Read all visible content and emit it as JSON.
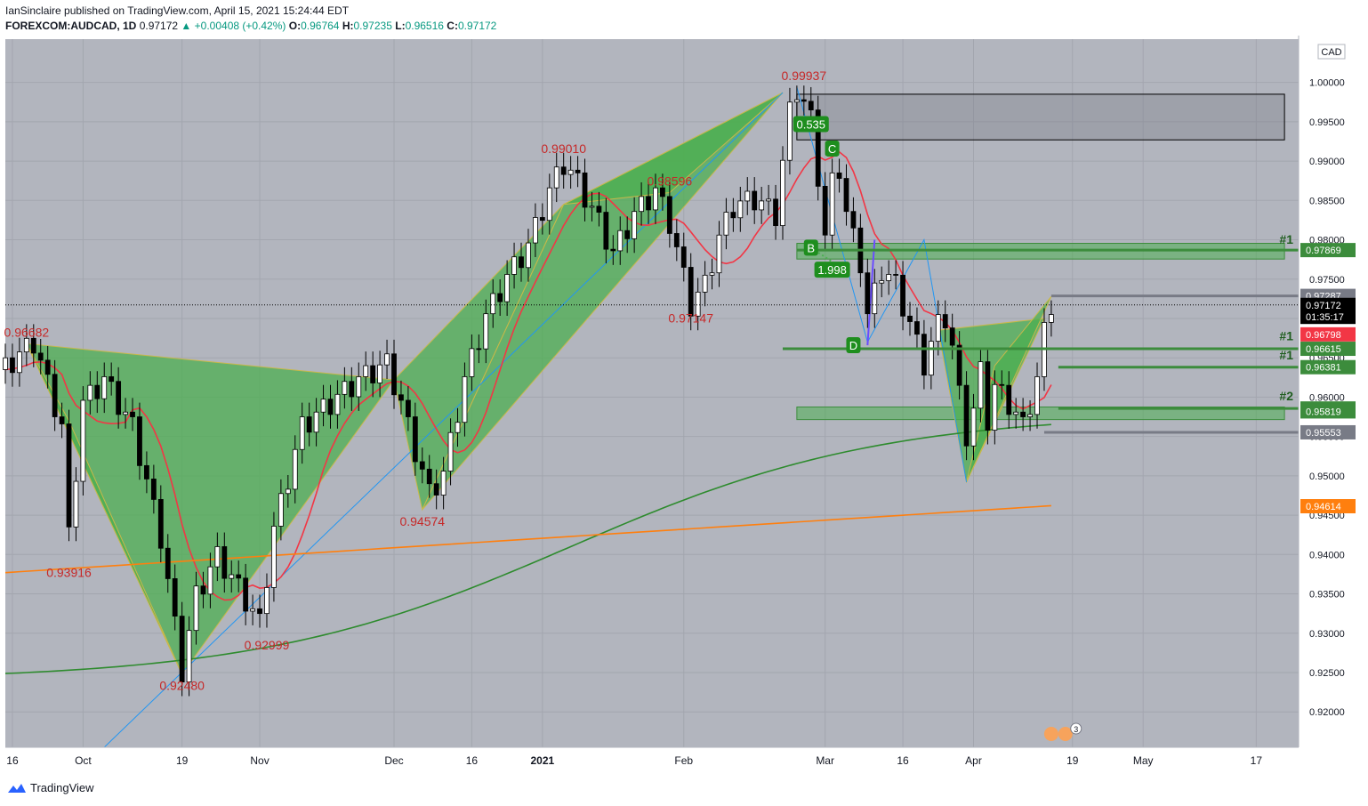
{
  "header": {
    "publisher_line": "IanSinclaire published on TradingView.com, April 15, 2021 15:24:44 EDT",
    "symbol": "FOREXCOM:AUDCAD, 1D",
    "last": "0.97172",
    "change": "+0.00408 (+0.42%)",
    "o_label": "O:",
    "o_value": "0.96764",
    "h_label": "H:",
    "h_value": "0.97235",
    "l_label": "L:",
    "l_value": "0.96516",
    "c_label": "C:",
    "c_value": "0.97172"
  },
  "footer": {
    "brand": "TradingView"
  },
  "colors": {
    "background": "#b2b5be",
    "bull_candle": "#ffffff",
    "bear_candle": "#000000",
    "pattern_fill": "#4caf50",
    "pattern_border": "#c9b84a",
    "ma_red": "#f23645",
    "ma_green": "#2e8b2e",
    "ma_orange": "#ff7f0e",
    "trendline": "#2196f3",
    "level_green": "#3c8c3c",
    "level_grey": "#787b86",
    "price_label_bg": "#000000"
  },
  "chart_data": {
    "type": "candlestick",
    "currency": "CAD",
    "ylim": [
      0.9155,
      1.0055
    ],
    "y_ticks": [
      "1.00000",
      "0.99500",
      "0.99000",
      "0.98500",
      "0.98000",
      "0.97500",
      "0.97000",
      "0.96500",
      "0.96000",
      "0.95500",
      "0.95000",
      "0.94500",
      "0.94000",
      "0.93500",
      "0.93000",
      "0.92500",
      "0.92000"
    ],
    "x_ticks": [
      {
        "label": "16",
        "x": 1
      },
      {
        "label": "Oct",
        "x": 11
      },
      {
        "label": "19",
        "x": 25
      },
      {
        "label": "Nov",
        "x": 36
      },
      {
        "label": "Dec",
        "x": 55
      },
      {
        "label": "16",
        "x": 66
      },
      {
        "label": "2021",
        "x": 76
      },
      {
        "label": "Feb",
        "x": 96
      },
      {
        "label": "Mar",
        "x": 116
      },
      {
        "label": "16",
        "x": 127
      },
      {
        "label": "Apr",
        "x": 137
      },
      {
        "label": "19",
        "x": 151
      },
      {
        "label": "May",
        "x": 161
      },
      {
        "label": "17",
        "x": 177
      }
    ],
    "x_range": [
      0,
      183
    ],
    "close_path": [
      [
        0,
        0.9635
      ],
      [
        4,
        0.9668
      ],
      [
        8,
        0.956
      ],
      [
        9,
        0.942
      ],
      [
        11,
        0.959
      ],
      [
        14,
        0.962
      ],
      [
        18,
        0.956
      ],
      [
        22,
        0.942
      ],
      [
        25,
        0.925
      ],
      [
        27,
        0.9345
      ],
      [
        30,
        0.9395
      ],
      [
        33,
        0.9355
      ],
      [
        36,
        0.931
      ],
      [
        38,
        0.943
      ],
      [
        42,
        0.956
      ],
      [
        46,
        0.959
      ],
      [
        50,
        0.962
      ],
      [
        54,
        0.964
      ],
      [
        56,
        0.959
      ],
      [
        58,
        0.953
      ],
      [
        60,
        0.9475
      ],
      [
        62,
        0.95
      ],
      [
        65,
        0.962
      ],
      [
        68,
        0.97
      ],
      [
        71,
        0.975
      ],
      [
        74,
        0.979
      ],
      [
        77,
        0.986
      ],
      [
        79,
        0.9895
      ],
      [
        81,
        0.987
      ],
      [
        84,
        0.982
      ],
      [
        86,
        0.978
      ],
      [
        89,
        0.983
      ],
      [
        92,
        0.986
      ],
      [
        94,
        0.982
      ],
      [
        96,
        0.975
      ],
      [
        97,
        0.9715
      ],
      [
        99,
        0.974
      ],
      [
        101,
        0.98
      ],
      [
        103,
        0.984
      ],
      [
        106,
        0.985
      ],
      [
        109,
        0.983
      ],
      [
        111,
        0.996
      ],
      [
        112,
        0.999
      ],
      [
        114,
        0.995
      ],
      [
        115,
        0.988
      ],
      [
        116,
        0.98
      ],
      [
        117,
        0.987
      ],
      [
        118,
        0.989
      ],
      [
        119,
        0.983
      ],
      [
        121,
        0.977
      ],
      [
        122,
        0.97
      ],
      [
        124,
        0.976
      ],
      [
        126,
        0.974
      ],
      [
        128,
        0.969
      ],
      [
        130,
        0.964
      ],
      [
        132,
        0.969
      ],
      [
        133,
        0.97
      ],
      [
        134,
        0.966
      ],
      [
        135,
        0.96
      ],
      [
        136,
        0.955
      ],
      [
        137,
        0.958
      ],
      [
        138,
        0.963
      ],
      [
        139,
        0.957
      ],
      [
        140,
        0.961
      ],
      [
        142,
        0.959
      ],
      [
        144,
        0.956
      ],
      [
        146,
        0.962
      ],
      [
        147,
        0.968
      ],
      [
        148,
        0.9717
      ]
    ],
    "price_labels": [
      {
        "text": "0.96682",
        "x": 3,
        "y": 0.9668,
        "pos": "above"
      },
      {
        "text": "0.93916",
        "x": 9,
        "y": 0.9392,
        "pos": "below"
      },
      {
        "text": "0.92480",
        "x": 25,
        "y": 0.9248,
        "pos": "below"
      },
      {
        "text": "0.92999",
        "x": 37,
        "y": 0.93,
        "pos": "below"
      },
      {
        "text": "0.94574",
        "x": 59,
        "y": 0.9457,
        "pos": "below"
      },
      {
        "text": "0.99010",
        "x": 79,
        "y": 0.9901,
        "pos": "above"
      },
      {
        "text": "0.98596",
        "x": 94,
        "y": 0.986,
        "pos": "above"
      },
      {
        "text": "0.97147",
        "x": 97,
        "y": 0.9715,
        "pos": "below"
      },
      {
        "text": "0.99937",
        "x": 113,
        "y": 0.9994,
        "pos": "above"
      }
    ],
    "pattern_badges": [
      {
        "text": "0.535",
        "x": 114,
        "y": 0.9947
      },
      {
        "text": "C",
        "x": 117,
        "y": 0.9916
      },
      {
        "text": "B",
        "x": 114,
        "y": 0.979
      },
      {
        "text": "1.998",
        "x": 117,
        "y": 0.9762
      },
      {
        "text": "D",
        "x": 120,
        "y": 0.9666
      }
    ],
    "axis_levels": [
      {
        "text": "0.97869",
        "y": 0.97869,
        "color": "#3c8c3c"
      },
      {
        "text": "0.97287",
        "y": 0.97287,
        "color": "#787b86"
      },
      {
        "text": "0.97172",
        "y": 0.97172,
        "color": "#000000"
      },
      {
        "text": "01:35:17",
        "y": 0.9702,
        "color": "#000000"
      },
      {
        "text": "0.96798",
        "y": 0.96798,
        "color": "#f23645"
      },
      {
        "text": "0.96615",
        "y": 0.96615,
        "color": "#3c8c3c"
      },
      {
        "text": "0.96381",
        "y": 0.96381,
        "color": "#3c8c3c"
      },
      {
        "text": "0.95856",
        "y": 0.95856,
        "color": "#3c8c3c"
      },
      {
        "text": "0.95819",
        "y": 0.95819,
        "color": "#3c8c3c"
      },
      {
        "text": "0.95553",
        "y": 0.95553,
        "color": "#787b86"
      },
      {
        "text": "0.94614",
        "y": 0.94614,
        "color": "#ff7f0e"
      }
    ],
    "level_tags": [
      {
        "text": "#1",
        "y": 0.9795
      },
      {
        "text": "#1",
        "y": 0.9672
      },
      {
        "text": "#1",
        "y": 0.9648
      },
      {
        "text": "#2",
        "y": 0.9596
      }
    ],
    "events_badge": "3"
  }
}
